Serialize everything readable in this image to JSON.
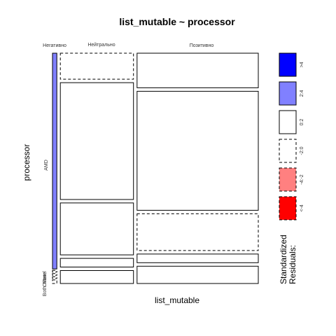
{
  "chart_data": {
    "type": "mosaic",
    "title": "list_mutable ~ processor",
    "xlabel": "list_mutable",
    "ylabel": "processor",
    "columns": [
      "Негативно",
      "Нейтрально",
      "Позитивно"
    ],
    "rows": [
      "AMD",
      "Intel",
      "None",
      "Other",
      "Both"
    ],
    "row_labels": [
      "AMD",
      "Intel",
      "None",
      "Other",
      "Both"
    ],
    "column_props": [
      0.022,
      0.368,
      0.61
    ],
    "row_props": {
      "Негативно": [
        0.96,
        0.008,
        0.008,
        0.008,
        0.016
      ],
      "Нейтрально": [
        0.12,
        0.54,
        0.24,
        0.04,
        0.06
      ],
      "Позитивно": [
        0.16,
        0.55,
        0.17,
        0.04,
        0.08
      ]
    },
    "residual_class": {
      "Негативно": [
        "2:4",
        "-2:0",
        "-2:0",
        "-2:0",
        "-2:0"
      ],
      "Нейтрально": [
        "-2:0",
        "0:2",
        "0:2",
        "0:2",
        "0:2"
      ],
      "Позитивно": [
        "0:2",
        "0:2",
        "-2:0",
        "0:2",
        "0:2"
      ]
    },
    "legend": {
      "title_line1": "Standardized",
      "title_line2": "Residuals:",
      "items": [
        {
          "label": ">4",
          "fill": "#0000ff",
          "dashed": false
        },
        {
          "label": "2:4",
          "fill": "#8080ff",
          "dashed": false
        },
        {
          "label": "0:2",
          "fill": "#ffffff",
          "dashed": false
        },
        {
          "label": "-2:0",
          "fill": "#ffffff",
          "dashed": true
        },
        {
          "label": "-4:-2",
          "fill": "#ff8080",
          "dashed": true
        },
        {
          "label": "<-4",
          "fill": "#ff0000",
          "dashed": true
        }
      ]
    }
  }
}
